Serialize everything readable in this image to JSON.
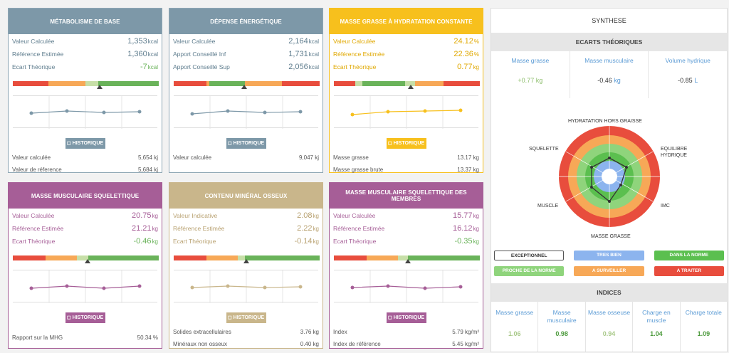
{
  "colors": {
    "blue": "#7d98a8",
    "yellow": "#f7c01d",
    "purple": "#a65e97",
    "tan": "#c9b68b",
    "red": "#e84d3d",
    "orange": "#f7a857",
    "lightgreen": "#c7dfa8",
    "green": "#6ab35a"
  },
  "cards": [
    {
      "title": "MÉTABOLISME DE BASE",
      "rows": [
        {
          "label": "Valeur Calculée",
          "value": "1,353",
          "unit": "kcal"
        },
        {
          "label": "Référence Estimée",
          "value": "1,360",
          "unit": "kcal"
        },
        {
          "label": "Ecart Théorique",
          "value": "-7",
          "unit": "kcal"
        }
      ],
      "history": "◻ HISTORIQUE",
      "foot": [
        {
          "label": "Valeur calculée",
          "value": "5,654 kj"
        },
        {
          "label": "Valeur de réference",
          "value": "5,684 kj"
        }
      ]
    },
    {
      "title": "DÉPENSE ÉNERGÉTIQUE",
      "rows": [
        {
          "label": "Valeur Calculée",
          "value": "2,164",
          "unit": "kcal"
        },
        {
          "label": "Apport Conseillé Inf",
          "value": "1,731",
          "unit": "kcal"
        },
        {
          "label": "Apport Conseillé Sup",
          "value": "2,056",
          "unit": "kcal"
        }
      ],
      "history": "◻ HISTORIQUE",
      "foot": [
        {
          "label": "Valeur calculée",
          "value": "9,047 kj"
        }
      ]
    },
    {
      "title": "MASSE GRASSE À HYDRATATION CONSTANTE",
      "rows": [
        {
          "label": "Valeur Calculée",
          "value": "24.12",
          "unit": "%"
        },
        {
          "label": "Référence Estimée",
          "value": "22.36",
          "unit": "%"
        },
        {
          "label": "Ecart Théorique",
          "value": "0.77",
          "unit": "kg"
        }
      ],
      "history": "◻ HISTORIQUE",
      "foot": [
        {
          "label": "Masse grasse",
          "value": "13.17 kg"
        },
        {
          "label": "Masse grasse brute",
          "value": "13.37 kg"
        }
      ]
    },
    {
      "title": "MASSE MUSCULAIRE SQUELETTIQUE",
      "rows": [
        {
          "label": "Valeur Calculée",
          "value": "20.75",
          "unit": "kg"
        },
        {
          "label": "Référence Estimée",
          "value": "21.21",
          "unit": "kg"
        },
        {
          "label": "Ecart Théorique",
          "value": "-0.46",
          "unit": "kg"
        }
      ],
      "history": "◻ HISTORIQUE",
      "foot": [
        {
          "label": "Rapport sur la MHG",
          "value": "50.34 %"
        }
      ]
    },
    {
      "title": "CONTENU MINÉRAL OSSEUX",
      "rows": [
        {
          "label": "Valeur Indicative",
          "value": "2.08",
          "unit": "kg"
        },
        {
          "label": "Référence Estimée",
          "value": "2.22",
          "unit": "kg"
        },
        {
          "label": "Ecart Théorique",
          "value": "-0.14",
          "unit": "kg"
        }
      ],
      "history": "◻ HISTORIQUE",
      "foot": [
        {
          "label": "Solides extracellulaires",
          "value": "3.76 kg"
        },
        {
          "label": "Minéraux non osseux",
          "value": "0.40 kg"
        }
      ]
    },
    {
      "title": "MASSE MUSCULAIRE SQUELETTIQUE DES MEMBRES",
      "rows": [
        {
          "label": "Valeur Calculée",
          "value": "15.77",
          "unit": "kg"
        },
        {
          "label": "Référence Estimée",
          "value": "16.12",
          "unit": "kg"
        },
        {
          "label": "Ecart Théorique",
          "value": "-0.35",
          "unit": "kg"
        }
      ],
      "history": "◻ HISTORIQUE",
      "foot": [
        {
          "label": "Index",
          "value": "5.79 kg/m²"
        },
        {
          "label": "Index de référence",
          "value": "5.45 kg/m²"
        }
      ]
    }
  ],
  "synthese": {
    "title": "SYNTHESE",
    "ecarts_title": "ECARTS THÉORIQUES",
    "ecarts": [
      {
        "label": "Masse grasse",
        "value": "+0.77",
        "unit": "kg"
      },
      {
        "label": "Masse musculaire",
        "value": "-0.46",
        "unit": "kg"
      },
      {
        "label": "Volume hydrique",
        "value": "-0.85",
        "unit": "L"
      }
    ],
    "radar_labels": {
      "top": "HYDRATATION HORS GRAISSE",
      "right1": "EQUILIBRE",
      "right2": "HYDRIQUE",
      "imc": "IMC",
      "bottom": "MASSE GRASSE",
      "muscle": "MUSCLE",
      "squelette": "SQUELETTE"
    },
    "legend": [
      "EXCEPTIONNEL",
      "TRES BIEN",
      "DANS LA NORME",
      "PROCHE DE LA NORME",
      "A SURVEILLER",
      "A TRAITER"
    ],
    "indices_title": "INDICES",
    "indices": [
      {
        "label": "Masse grasse",
        "value": "1.06"
      },
      {
        "label": "Masse musculaire",
        "value": "0.98"
      },
      {
        "label": "Masse osseuse",
        "value": "0.94"
      },
      {
        "label": "Charge en muscle",
        "value": "1.04"
      },
      {
        "label": "Charge totale",
        "value": "1.09"
      }
    ]
  }
}
